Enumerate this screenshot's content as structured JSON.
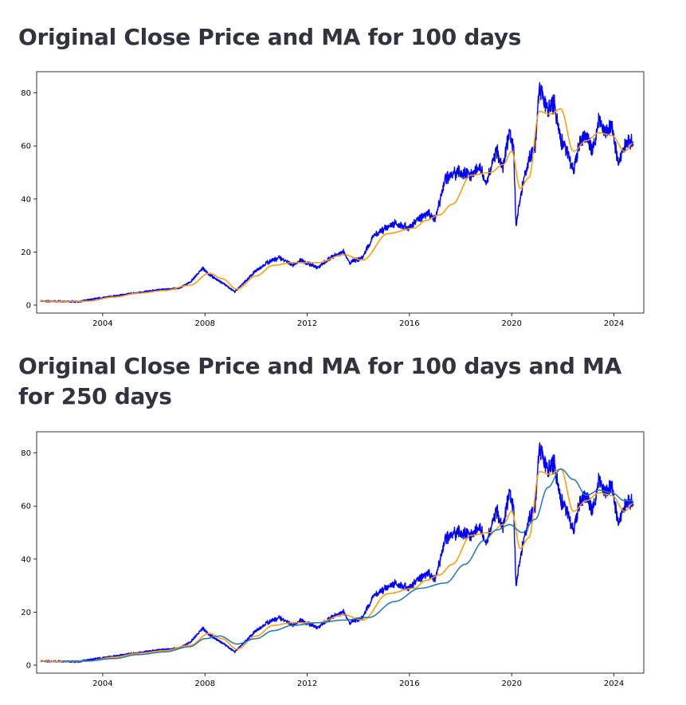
{
  "headings": [
    "Original Close Price and MA for 100 days",
    "Original Close Price and MA for 100 days and MA for 250 days"
  ],
  "colors": {
    "close": "#0000ff",
    "ma100": "#ff9900",
    "ma250": "#1f77b4",
    "axes": "#000000"
  },
  "chart_data": [
    {
      "type": "line",
      "title": "",
      "xlabel": "",
      "ylabel": "",
      "xlim": [
        "2001-06-01",
        "2025-03-01"
      ],
      "ylim": [
        -3,
        88
      ],
      "x_ticks": [
        "2004",
        "2008",
        "2012",
        "2016",
        "2020",
        "2024"
      ],
      "y_ticks": [
        0,
        20,
        40,
        60,
        80
      ],
      "series": [
        {
          "key": "close",
          "color": "#0000ff",
          "x": [
            "2001-08",
            "2002-06",
            "2003-01",
            "2004-01",
            "2005-01",
            "2006-01",
            "2007-01",
            "2007-06",
            "2007-12",
            "2008-02",
            "2008-06",
            "2008-10",
            "2009-03",
            "2009-08",
            "2010-01",
            "2010-06",
            "2010-12",
            "2011-06",
            "2011-10",
            "2012-06",
            "2012-12",
            "2013-06",
            "2013-09",
            "2014-03",
            "2014-08",
            "2015-02",
            "2015-06",
            "2016-01",
            "2016-06",
            "2016-10",
            "2017-01",
            "2017-06",
            "2017-12",
            "2018-06",
            "2018-10",
            "2019-01",
            "2019-06",
            "2019-09",
            "2019-12",
            "2020-02",
            "2020-03",
            "2020-06",
            "2020-09",
            "2020-12",
            "2021-02",
            "2021-06",
            "2021-09",
            "2021-12",
            "2022-03",
            "2022-06",
            "2022-09",
            "2022-12",
            "2023-03",
            "2023-06",
            "2023-09",
            "2023-12",
            "2024-03",
            "2024-06",
            "2024-08",
            "2024-10"
          ],
          "values": [
            1.5,
            1.4,
            1.3,
            2.8,
            4.2,
            5.5,
            6.5,
            8.5,
            14,
            12,
            10,
            8,
            5,
            9,
            13,
            16,
            18,
            15,
            17,
            14,
            18,
            20,
            16,
            18,
            26,
            29,
            31,
            29,
            33,
            35,
            32,
            48,
            50,
            49,
            52,
            46,
            58,
            52,
            66,
            58,
            30,
            45,
            55,
            60,
            83,
            73,
            76,
            62,
            58,
            51,
            62,
            64,
            58,
            70,
            65,
            68,
            53,
            60,
            63,
            60
          ]
        },
        {
          "key": "ma100",
          "color": "#ff9900",
          "x": [
            "2001-08",
            "2002-06",
            "2003-06",
            "2004-06",
            "2005-06",
            "2006-06",
            "2007-06",
            "2008-03",
            "2008-09",
            "2009-04",
            "2010-01",
            "2010-09",
            "2011-06",
            "2012-06",
            "2013-06",
            "2014-03",
            "2015-03",
            "2016-03",
            "2016-09",
            "2017-03",
            "2017-09",
            "2018-06",
            "2019-03",
            "2019-09",
            "2020-01",
            "2020-05",
            "2020-09",
            "2021-02",
            "2021-07",
            "2021-12",
            "2022-06",
            "2022-12",
            "2023-06",
            "2023-12",
            "2024-06",
            "2024-10"
          ],
          "values": [
            1.5,
            1.4,
            1.5,
            3.0,
            4.5,
            5.5,
            7.5,
            12,
            10,
            6,
            11,
            15,
            16,
            16,
            19,
            17,
            27,
            29,
            32,
            34,
            38,
            49,
            50,
            53,
            58,
            44,
            48,
            73,
            72,
            74,
            58,
            62,
            65,
            64,
            58,
            61
          ]
        },
        {
          "key": "ma250",
          "color": "#1f77b4",
          "x": [],
          "values": []
        }
      ]
    },
    {
      "type": "line",
      "title": "",
      "xlabel": "",
      "ylabel": "",
      "xlim": [
        "2001-06-01",
        "2025-03-01"
      ],
      "ylim": [
        -3,
        88
      ],
      "x_ticks": [
        "2004",
        "2008",
        "2012",
        "2016",
        "2020",
        "2024"
      ],
      "y_ticks": [
        0,
        20,
        40,
        60,
        80
      ],
      "series": [
        {
          "key": "close",
          "color": "#0000ff",
          "x": [
            "2001-08",
            "2002-06",
            "2003-01",
            "2004-01",
            "2005-01",
            "2006-01",
            "2007-01",
            "2007-06",
            "2007-12",
            "2008-02",
            "2008-06",
            "2008-10",
            "2009-03",
            "2009-08",
            "2010-01",
            "2010-06",
            "2010-12",
            "2011-06",
            "2011-10",
            "2012-06",
            "2012-12",
            "2013-06",
            "2013-09",
            "2014-03",
            "2014-08",
            "2015-02",
            "2015-06",
            "2016-01",
            "2016-06",
            "2016-10",
            "2017-01",
            "2017-06",
            "2017-12",
            "2018-06",
            "2018-10",
            "2019-01",
            "2019-06",
            "2019-09",
            "2019-12",
            "2020-02",
            "2020-03",
            "2020-06",
            "2020-09",
            "2020-12",
            "2021-02",
            "2021-06",
            "2021-09",
            "2021-12",
            "2022-03",
            "2022-06",
            "2022-09",
            "2022-12",
            "2023-03",
            "2023-06",
            "2023-09",
            "2023-12",
            "2024-03",
            "2024-06",
            "2024-08",
            "2024-10"
          ],
          "values": [
            1.5,
            1.4,
            1.3,
            2.8,
            4.2,
            5.5,
            6.5,
            8.5,
            14,
            12,
            10,
            8,
            5,
            9,
            13,
            16,
            18,
            15,
            17,
            14,
            18,
            20,
            16,
            18,
            26,
            29,
            31,
            29,
            33,
            35,
            32,
            48,
            50,
            49,
            52,
            46,
            58,
            52,
            66,
            58,
            30,
            45,
            55,
            60,
            83,
            73,
            76,
            62,
            58,
            51,
            62,
            64,
            58,
            70,
            65,
            68,
            53,
            60,
            63,
            60
          ]
        },
        {
          "key": "ma100",
          "color": "#ff9900",
          "x": [
            "2001-08",
            "2002-06",
            "2003-06",
            "2004-06",
            "2005-06",
            "2006-06",
            "2007-06",
            "2008-03",
            "2008-09",
            "2009-04",
            "2010-01",
            "2010-09",
            "2011-06",
            "2012-06",
            "2013-06",
            "2014-03",
            "2015-03",
            "2016-03",
            "2016-09",
            "2017-03",
            "2017-09",
            "2018-06",
            "2019-03",
            "2019-09",
            "2020-01",
            "2020-05",
            "2020-09",
            "2021-02",
            "2021-07",
            "2021-12",
            "2022-06",
            "2022-12",
            "2023-06",
            "2023-12",
            "2024-06",
            "2024-10"
          ],
          "values": [
            1.5,
            1.4,
            1.5,
            3.0,
            4.5,
            5.5,
            7.5,
            12,
            10,
            6,
            11,
            15,
            16,
            16,
            19,
            17,
            27,
            29,
            32,
            34,
            38,
            49,
            50,
            53,
            58,
            44,
            48,
            73,
            72,
            74,
            58,
            62,
            65,
            64,
            58,
            61
          ]
        },
        {
          "key": "ma250",
          "color": "#1f77b4",
          "x": [
            "2002-06",
            "2003-06",
            "2004-06",
            "2005-06",
            "2006-06",
            "2007-06",
            "2008-01",
            "2008-08",
            "2009-04",
            "2010-01",
            "2010-09",
            "2011-06",
            "2012-06",
            "2013-06",
            "2014-06",
            "2015-06",
            "2016-06",
            "2017-06",
            "2018-03",
            "2018-12",
            "2019-06",
            "2019-12",
            "2020-06",
            "2020-12",
            "2021-06",
            "2021-12",
            "2022-06",
            "2022-12",
            "2023-06",
            "2023-12",
            "2024-06",
            "2024-10"
          ],
          "values": [
            1.5,
            1.6,
            2.5,
            4.0,
            5.0,
            7.0,
            10,
            11,
            8,
            10,
            13,
            15,
            16,
            17,
            18,
            24,
            29,
            31,
            38,
            47,
            51,
            53,
            50,
            55,
            67,
            74,
            70,
            64,
            66,
            65,
            62,
            62
          ]
        }
      ]
    }
  ]
}
